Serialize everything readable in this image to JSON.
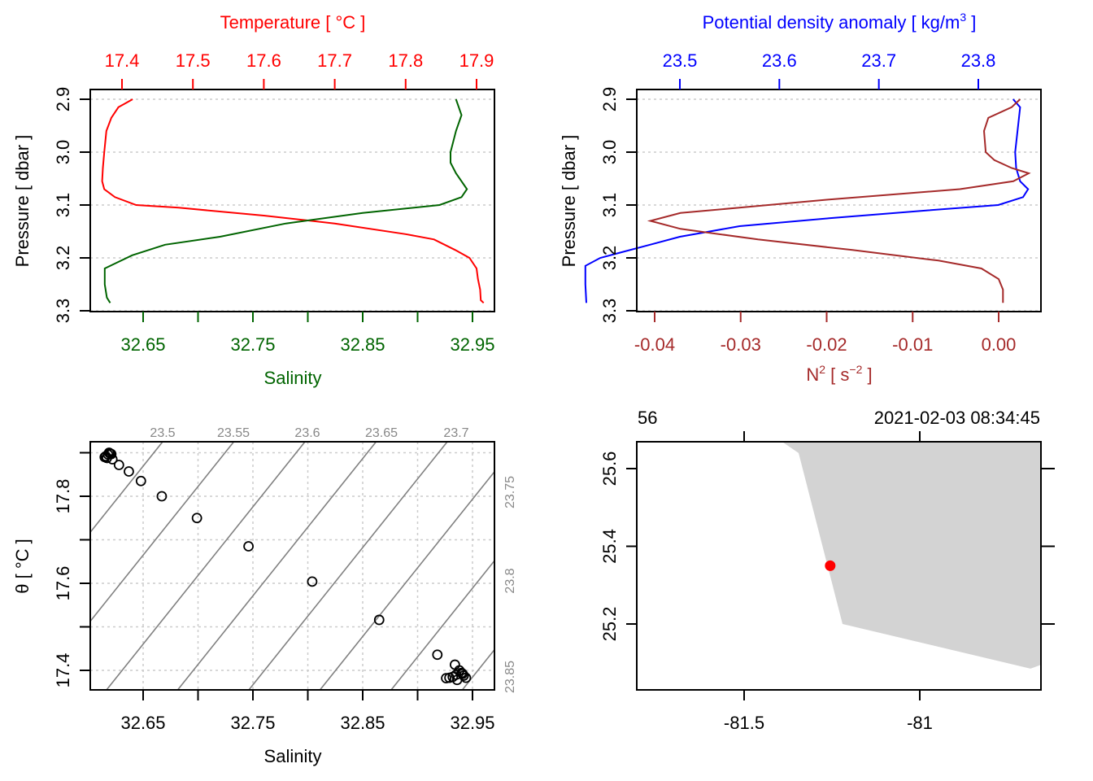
{
  "chart_data": [
    {
      "id": "profile-ts",
      "type": "line",
      "title": "",
      "top_axis": {
        "label": "Temperature [ °C ]",
        "color": "#ff0000",
        "ticks": [
          "17.4",
          "17.5",
          "17.6",
          "17.7",
          "17.8",
          "17.9"
        ],
        "tick_values": [
          17.4,
          17.5,
          17.6,
          17.7,
          17.8,
          17.9
        ]
      },
      "bottom_axis": {
        "label": "Salinity",
        "color": "#006400",
        "tick_values": [
          32.65,
          32.7,
          32.75,
          32.8,
          32.85,
          32.9,
          32.95
        ],
        "labeled_ticks": [
          "32.65",
          "32.75",
          "32.85",
          "32.95"
        ]
      },
      "left_axis": {
        "label": "Pressure [ dbar ]",
        "ticks": [
          "2.9",
          "3.0",
          "3.1",
          "3.2",
          "3.3"
        ],
        "tick_values": [
          2.9,
          3.0,
          3.1,
          3.2,
          3.3
        ],
        "reversed": true
      },
      "ylim": [
        2.9,
        3.3
      ],
      "grid": "horizontal dotted",
      "series": [
        {
          "name": "Temperature",
          "color": "#ff0000",
          "axis": "top",
          "points": [
            [
              17.415,
              2.9
            ],
            [
              17.395,
              2.915
            ],
            [
              17.385,
              2.935
            ],
            [
              17.378,
              2.96
            ],
            [
              17.375,
              3.0
            ],
            [
              17.373,
              3.03
            ],
            [
              17.372,
              3.055
            ],
            [
              17.375,
              3.07
            ],
            [
              17.39,
              3.085
            ],
            [
              17.42,
              3.1
            ],
            [
              17.48,
              3.105
            ],
            [
              17.6,
              3.12
            ],
            [
              17.7,
              3.135
            ],
            [
              17.8,
              3.155
            ],
            [
              17.84,
              3.165
            ],
            [
              17.87,
              3.185
            ],
            [
              17.89,
              3.2
            ],
            [
              17.9,
              3.22
            ],
            [
              17.902,
              3.24
            ],
            [
              17.905,
              3.26
            ],
            [
              17.906,
              3.28
            ],
            [
              17.91,
              3.285
            ]
          ]
        },
        {
          "name": "Salinity",
          "color": "#006400",
          "axis": "bottom",
          "points": [
            [
              32.935,
              2.9
            ],
            [
              32.94,
              2.93
            ],
            [
              32.935,
              2.96
            ],
            [
              32.93,
              3.0
            ],
            [
              32.93,
              3.02
            ],
            [
              32.935,
              3.04
            ],
            [
              32.945,
              3.07
            ],
            [
              32.94,
              3.085
            ],
            [
              32.92,
              3.1
            ],
            [
              32.85,
              3.115
            ],
            [
              32.78,
              3.135
            ],
            [
              32.72,
              3.16
            ],
            [
              32.67,
              3.175
            ],
            [
              32.64,
              3.195
            ],
            [
              32.625,
              3.21
            ],
            [
              32.615,
              3.22
            ],
            [
              32.615,
              3.25
            ],
            [
              32.617,
              3.275
            ],
            [
              32.62,
              3.285
            ]
          ]
        }
      ]
    },
    {
      "id": "profile-density",
      "type": "line",
      "title": "",
      "top_axis": {
        "label": "Potential density anomaly [ kg/m",
        "label_sup": "3",
        "label_end": " ]",
        "color": "#0000ff",
        "ticks": [
          "23.5",
          "23.6",
          "23.7",
          "23.8"
        ],
        "tick_values": [
          23.5,
          23.6,
          23.7,
          23.8
        ]
      },
      "bottom_axis": {
        "label_base": "N",
        "label_sup": "2",
        "label_mid": " [ s",
        "label_sup2": "−2",
        "label_end": " ]",
        "color": "#a52a2a",
        "ticks": [
          "-0.04",
          "-0.03",
          "-0.02",
          "-0.01",
          "0.00"
        ],
        "tick_values": [
          -0.04,
          -0.03,
          -0.02,
          -0.01,
          0.0
        ]
      },
      "left_axis": {
        "label": "Pressure [ dbar ]",
        "ticks": [
          "2.9",
          "3.0",
          "3.1",
          "3.2",
          "3.3"
        ],
        "tick_values": [
          2.9,
          3.0,
          3.1,
          3.2,
          3.3
        ],
        "reversed": true
      },
      "ylim": [
        2.9,
        3.3
      ],
      "grid": "horizontal dotted",
      "series": [
        {
          "name": "Potential density anomaly",
          "color": "#0000ff",
          "axis": "top",
          "points": [
            [
              23.835,
              2.9
            ],
            [
              23.842,
              2.915
            ],
            [
              23.84,
              2.95
            ],
            [
              23.837,
              3.0
            ],
            [
              23.838,
              3.03
            ],
            [
              23.842,
              3.055
            ],
            [
              23.85,
              3.07
            ],
            [
              23.845,
              3.085
            ],
            [
              23.82,
              3.1
            ],
            [
              23.75,
              3.11
            ],
            [
              23.65,
              3.125
            ],
            [
              23.56,
              3.14
            ],
            [
              23.5,
              3.16
            ],
            [
              23.47,
              3.175
            ],
            [
              23.44,
              3.19
            ],
            [
              23.42,
              3.2
            ],
            [
              23.405,
              3.215
            ],
            [
              23.405,
              3.25
            ],
            [
              23.406,
              3.285
            ]
          ]
        },
        {
          "name": "N2",
          "color": "#a52a2a",
          "axis": "bottom",
          "points": [
            [
              0.0025,
              2.9
            ],
            [
              0.0015,
              2.915
            ],
            [
              -0.0012,
              2.935
            ],
            [
              -0.0017,
              2.96
            ],
            [
              -0.0015,
              3.0
            ],
            [
              -0.0005,
              3.015
            ],
            [
              0.0015,
              3.03
            ],
            [
              0.0035,
              3.04
            ],
            [
              0.0017,
              3.055
            ],
            [
              -0.0045,
              3.07
            ],
            [
              -0.02,
              3.09
            ],
            [
              -0.037,
              3.115
            ],
            [
              -0.0405,
              3.13
            ],
            [
              -0.037,
              3.145
            ],
            [
              -0.028,
              3.165
            ],
            [
              -0.017,
              3.185
            ],
            [
              -0.007,
              3.205
            ],
            [
              -0.002,
              3.22
            ],
            [
              0.0,
              3.24
            ],
            [
              0.0005,
              3.26
            ],
            [
              0.0005,
              3.285
            ]
          ]
        }
      ]
    },
    {
      "id": "ts-diagram",
      "type": "scatter",
      "title": "",
      "xlabel": "Salinity",
      "ylabel": "θ [ °C ]",
      "x_ticks": [
        "32.65",
        "32.75",
        "32.85",
        "32.95"
      ],
      "x_tick_values": [
        32.65,
        32.7,
        32.75,
        32.8,
        32.85,
        32.9,
        32.95
      ],
      "y_ticks": [
        "17.4",
        "17.6",
        "17.8"
      ],
      "y_tick_values": [
        17.4,
        17.5,
        17.6,
        17.7,
        17.8,
        17.9
      ],
      "grid": "dotted",
      "isopycnal_labels_top": [
        "23.5",
        "23.55",
        "23.6",
        "23.65",
        "23.7"
      ],
      "isopycnal_labels_right": [
        "23.75",
        "23.8",
        "23.85"
      ],
      "isopycnal_color": "#808080",
      "points": [
        [
          32.616,
          17.892
        ],
        [
          32.618,
          17.896
        ],
        [
          32.62,
          17.898
        ],
        [
          32.617,
          17.888
        ],
        [
          32.615,
          17.89
        ],
        [
          32.619,
          17.9
        ],
        [
          32.621,
          17.897
        ],
        [
          32.622,
          17.885
        ],
        [
          32.628,
          17.872
        ],
        [
          32.637,
          17.857
        ],
        [
          32.648,
          17.835
        ],
        [
          32.667,
          17.8
        ],
        [
          32.699,
          17.75
        ],
        [
          32.746,
          17.685
        ],
        [
          32.804,
          17.604
        ],
        [
          32.865,
          17.516
        ],
        [
          32.918,
          17.436
        ],
        [
          32.934,
          17.413
        ],
        [
          32.926,
          17.382
        ],
        [
          32.929,
          17.383
        ],
        [
          32.932,
          17.385
        ],
        [
          32.935,
          17.39
        ],
        [
          32.938,
          17.4
        ],
        [
          32.94,
          17.394
        ],
        [
          32.942,
          17.388
        ],
        [
          32.936,
          17.378
        ],
        [
          32.944,
          17.383
        ],
        [
          32.941,
          17.392
        ]
      ]
    },
    {
      "id": "location-map",
      "type": "map",
      "top_left_label": "56",
      "top_right_label": "2021-02-03 08:34:45",
      "x_ticks": [
        "-81.5",
        "-81"
      ],
      "x_tick_values": [
        -81.5,
        -81.0
      ],
      "y_ticks": [
        "25.2",
        "25.4",
        "25.6"
      ],
      "y_tick_values": [
        25.2,
        25.4,
        25.6
      ],
      "xlim": [
        -81.805,
        -80.655
      ],
      "ylim": [
        25.06,
        25.668
      ],
      "land_color": "#d3d3d3",
      "land_polygon": [
        [
          -81.39,
          25.668
        ],
        [
          -81.345,
          25.64
        ],
        [
          -81.22,
          25.2
        ],
        [
          -80.685,
          25.085
        ],
        [
          -80.655,
          25.095
        ],
        [
          -80.655,
          25.668
        ]
      ],
      "station": {
        "lon": -81.255,
        "lat": 25.35,
        "color": "#ff0000"
      }
    }
  ]
}
